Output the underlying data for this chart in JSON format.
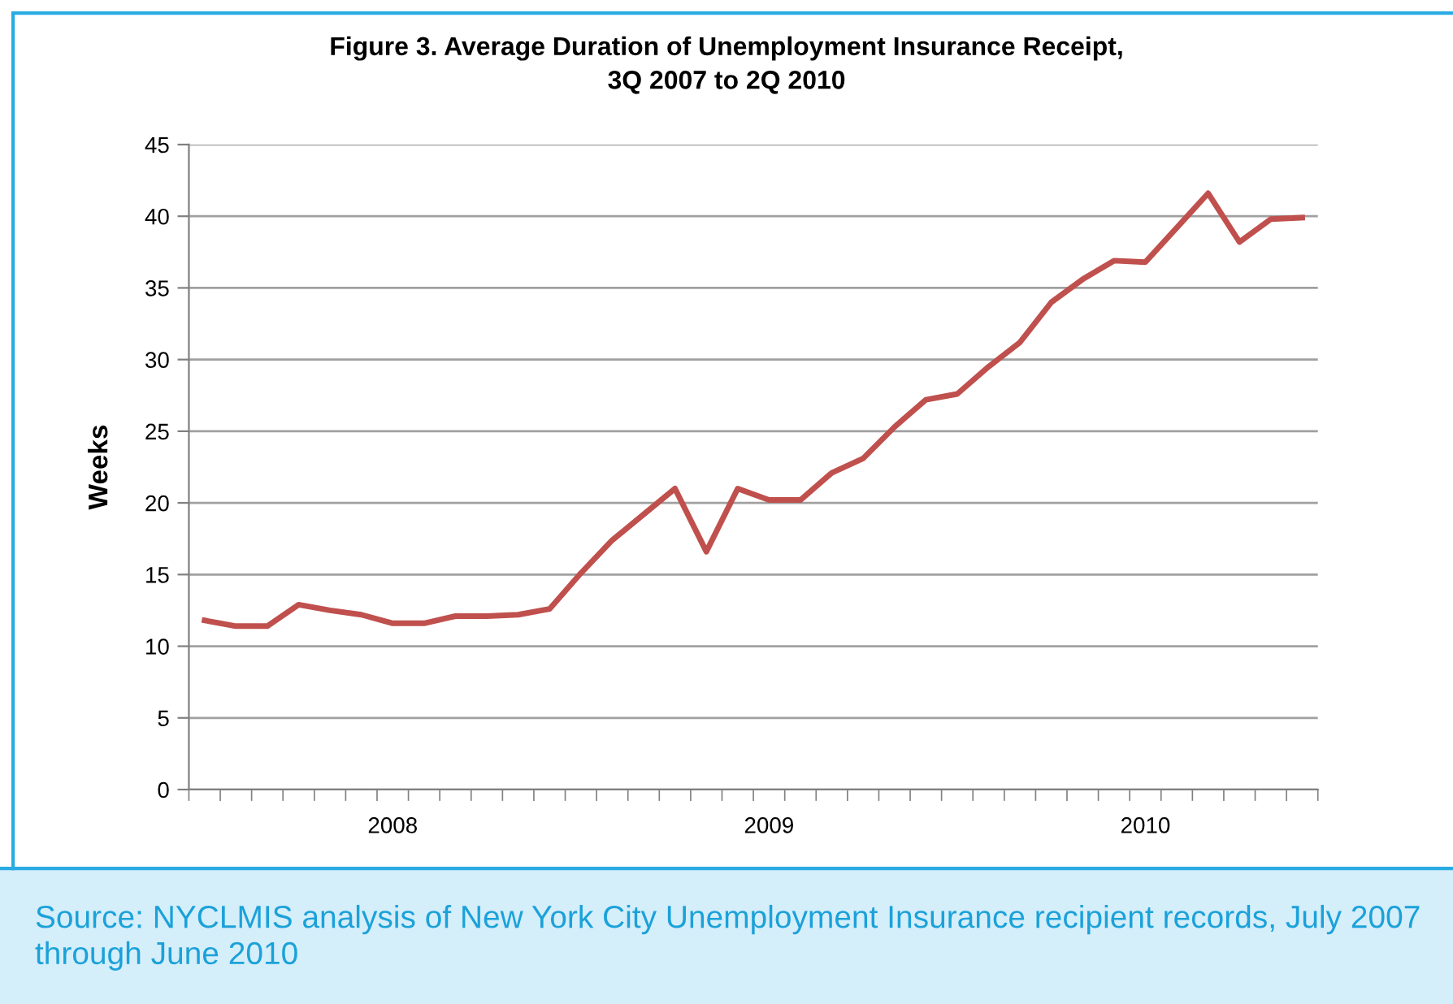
{
  "chart_data": {
    "type": "line",
    "title": "Figure 3. Average Duration of Unemployment Insurance Receipt,\n3Q 2007 to 2Q 2010",
    "ylabel": "Weeks",
    "categories": [
      null,
      null,
      null,
      null,
      null,
      null,
      "2008",
      null,
      null,
      null,
      null,
      null,
      null,
      null,
      null,
      null,
      null,
      null,
      "2009",
      null,
      null,
      null,
      null,
      null,
      null,
      null,
      null,
      null,
      null,
      null,
      "2010",
      null,
      null,
      null,
      null,
      null
    ],
    "series": [
      {
        "color": "#c0504d",
        "values": [
          11.8,
          11.4,
          11.4,
          12.9,
          12.5,
          12.2,
          11.6,
          11.6,
          12.1,
          12.1,
          12.2,
          12.6,
          15.1,
          17.4,
          19.2,
          21.0,
          16.6,
          21.0,
          20.2,
          20.2,
          22.1,
          23.1,
          25.3,
          27.2,
          27.6,
          29.5,
          31.2,
          34.0,
          35.6,
          36.9,
          36.8,
          39.2,
          41.6,
          38.2,
          39.8,
          39.9
        ]
      }
    ],
    "ylim": [
      0,
      45
    ],
    "yticks": [
      0,
      5,
      10,
      15,
      20,
      25,
      30,
      35,
      40,
      45
    ],
    "grid": "y",
    "legend": false,
    "marker": "none",
    "line_style": "solid",
    "annotations": [
      "Source: NYCLMIS analysis of New York City Unemployment Insurance recipient records, July 2007 through June 2010"
    ]
  }
}
